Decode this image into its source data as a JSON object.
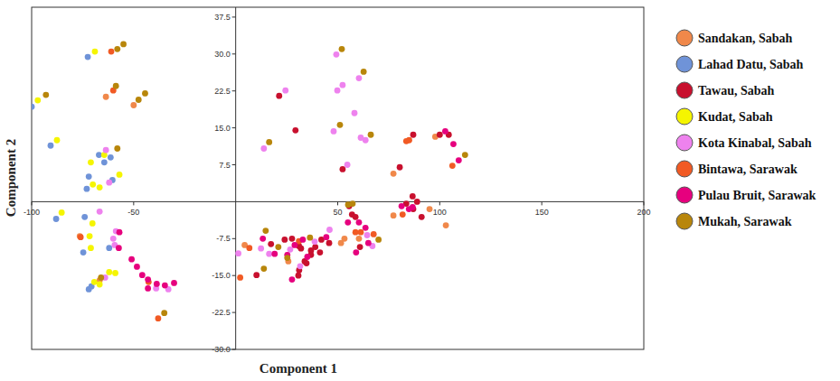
{
  "chart_data": {
    "type": "scatter",
    "xlabel": "Component 1",
    "ylabel": "Component 2",
    "xlim": [
      -100,
      200
    ],
    "ylim": [
      -30,
      39.5
    ],
    "xticks": [
      -100,
      -50,
      50,
      100,
      150,
      200
    ],
    "yticks": [
      37.5,
      {
        "value": 30,
        "label": "30.0"
      },
      22.5,
      {
        "value": 15,
        "label": "15.0"
      },
      7.5,
      -7.5,
      {
        "value": -15,
        "label": "-15.0"
      },
      -22.5,
      {
        "value": -30,
        "label": "-30.0"
      }
    ],
    "grid": false,
    "legend": "right",
    "series": [
      {
        "name": "Sandakan, Sabah",
        "color": "#f0884a",
        "x": [
          -50,
          -63.6,
          -76.4,
          77.3,
          97.8,
          77.3,
          103,
          51.6,
          53.3,
          60.4,
          25.8,
          4.4,
          95,
          -66.7
        ],
        "values": [
          19.6,
          21.3,
          -7,
          5.7,
          13.2,
          -2.8,
          -4.8,
          -8.4,
          -7.5,
          -7.5,
          -12.1,
          -8.8,
          -1.5,
          -16
        ]
      },
      {
        "name": "Lahad Datu, Sabah",
        "color": "#6f93d8",
        "x": [
          -72.5,
          -100,
          -90.7,
          -67,
          -61.3,
          -72,
          -64.4,
          -60.4,
          -73,
          -88,
          -74,
          -74.7,
          -62,
          -72,
          -70.7
        ],
        "values": [
          29.4,
          19.3,
          11.4,
          9.5,
          9,
          5.1,
          8,
          4.4,
          2.6,
          -3.5,
          -3.1,
          -10.3,
          -9.4,
          -17.8,
          -17.2
        ]
      },
      {
        "name": "Tawau, Sabah",
        "color": "#c8102e",
        "x": [
          21.3,
          29.3,
          52.4,
          80.4,
          87,
          100,
          104.4,
          86.7,
          88.9,
          83.6,
          87,
          91.1,
          10.2,
          17.3,
          24,
          27.6,
          31,
          32,
          33.8,
          30.7,
          31.1,
          34.7,
          36.9,
          39,
          36.9,
          42,
          45.8,
          41.3,
          55.6,
          57,
          58.7,
          60.9
        ],
        "values": [
          21.5,
          14.5,
          6.6,
          7,
          13.6,
          13.6,
          13.6,
          1.1,
          0,
          -0.4,
          -1.5,
          -3.1,
          -14.9,
          -8.6,
          -7.7,
          -7.5,
          -9,
          -9.5,
          -12.1,
          -15,
          -13.9,
          -12.5,
          -9.9,
          -9.2,
          -10.8,
          -7.7,
          -8.4,
          -10.3,
          -0.9,
          -2.6,
          -3.1,
          -9.2
        ]
      },
      {
        "name": "Kudat, Sabah",
        "color": "#f5f500",
        "x": [
          -69,
          -97,
          -87.6,
          -64.4,
          -71,
          -57,
          -70,
          -66.7,
          -85.3,
          -70.2,
          -71.6,
          -71,
          -62,
          -69.3,
          -66.7,
          -59
        ],
        "values": [
          30.5,
          20.6,
          12.5,
          9.5,
          8,
          5.5,
          3.5,
          2.9,
          -2.2,
          -4.4,
          -7,
          -9.4,
          -14.3,
          -16.3,
          -16.8,
          -14.5
        ]
      },
      {
        "name": "Kota Kinabal, Sabah",
        "color": "#ee82ee",
        "x": [
          -63.6,
          -62,
          -66.7,
          -60,
          -58.7,
          -59.3,
          -64,
          -39,
          -33,
          49.3,
          24.4,
          52.4,
          49.8,
          60.4,
          58.2,
          48,
          61.3,
          63.6,
          54.7,
          13.8,
          1.3,
          12.4,
          16.4,
          26.7,
          31.6,
          38.7,
          46,
          64.4,
          67
        ],
        "values": [
          10.5,
          3.9,
          -2,
          -7.5,
          -6,
          -8.8,
          -15.4,
          -17.6,
          -17.8,
          29.9,
          22.6,
          23.7,
          22.6,
          25.1,
          18,
          14.3,
          13,
          12.5,
          7.5,
          10.8,
          -10.5,
          -9.5,
          -10.6,
          -9.7,
          -13.1,
          -8.1,
          -5.7,
          -6.8,
          -9
        ]
      },
      {
        "name": "Bintawa, Sarawak",
        "color": "#f15a24",
        "x": [
          -61,
          -60,
          -76,
          -42.7,
          -38,
          83.6,
          85,
          106.2,
          81.8,
          2.2,
          6.7,
          31,
          58.7,
          61.3,
          67.6
        ],
        "values": [
          30.5,
          22.6,
          -7.2,
          -16.3,
          -23.7,
          12.3,
          12.5,
          7.3,
          -2.6,
          -15.4,
          -9.4,
          -8,
          -6.2,
          -6.2,
          -6.6
        ]
      },
      {
        "name": "Pulau Bruit, Sarawak",
        "color": "#e6007e",
        "x": [
          -57,
          -57.3,
          -51,
          -48.4,
          -45.8,
          -43,
          -38.7,
          -34.7,
          -30.2,
          -43,
          102.7,
          106.7,
          109.3,
          81.3,
          84.9,
          86.7,
          13.3,
          19.1,
          25.3,
          28.9,
          32.9,
          27.6,
          35.1,
          44.4,
          55,
          60.4,
          63.6,
          65,
          59
        ],
        "values": [
          -6.2,
          -9.4,
          -11.7,
          -13.2,
          -14.9,
          -15.8,
          -16.7,
          -17,
          -16.5,
          -17.6,
          14.3,
          11.7,
          8.4,
          -0.9,
          -1.5,
          -1.1,
          -7.5,
          -10.6,
          -10.8,
          -8.8,
          -7.7,
          -15.8,
          -11.2,
          -7.2,
          -4.2,
          -4.2,
          -5.3,
          -8.4,
          -10.3
        ]
      },
      {
        "name": "Mukah, Sarawak",
        "color": "#b8860b",
        "x": [
          -58,
          -55,
          -93,
          -58.7,
          -44.4,
          -47.6,
          -58,
          -66,
          -35,
          52,
          62.7,
          51.1,
          66.2,
          16.4,
          112.4,
          14.7,
          13.8,
          20.9,
          25.3,
          36.4,
          57.3,
          55.1,
          70
        ],
        "values": [
          31,
          32,
          21.7,
          23.5,
          22,
          20.7,
          10.8,
          -15.4,
          -22.6,
          31,
          26.4,
          15.6,
          13.6,
          12.1,
          9.5,
          -5.9,
          -13.6,
          -9.2,
          -11.4,
          -7.3,
          -0.4,
          -0.6,
          -7.7
        ]
      }
    ]
  }
}
